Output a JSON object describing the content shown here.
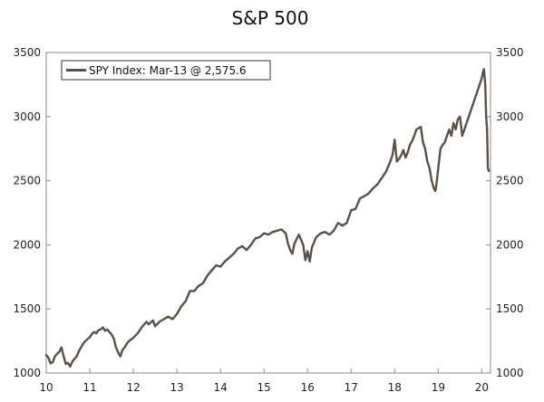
{
  "chart_data": {
    "type": "line",
    "title": "S&P 500",
    "xlabel": "",
    "ylabel": "",
    "xlim": [
      10,
      20.2
    ],
    "ylim": [
      1000,
      3500
    ],
    "x_ticks": [
      10,
      11,
      12,
      13,
      14,
      15,
      16,
      17,
      18,
      19,
      20
    ],
    "x_tick_labels": [
      "10",
      "11",
      "12",
      "13",
      "14",
      "15",
      "16",
      "17",
      "18",
      "19",
      "20"
    ],
    "y_ticks": [
      1000,
      1500,
      2000,
      2500,
      3000,
      3500
    ],
    "y_tick_labels": [
      "1000",
      "1500",
      "2000",
      "2500",
      "3000",
      "3500"
    ],
    "grid": false,
    "legend": {
      "position": "top-left",
      "label": "SPY Index: Mar-13 @ 2,575.6"
    },
    "series_color": "#5b5048",
    "series": [
      {
        "name": "SPY Index",
        "x": [
          10.0,
          10.05,
          10.1,
          10.15,
          10.2,
          10.25,
          10.3,
          10.35,
          10.4,
          10.45,
          10.5,
          10.55,
          10.6,
          10.65,
          10.7,
          10.75,
          10.8,
          10.85,
          10.9,
          10.95,
          11.0,
          11.05,
          11.1,
          11.15,
          11.2,
          11.25,
          11.3,
          11.35,
          11.4,
          11.45,
          11.5,
          11.55,
          11.6,
          11.65,
          11.7,
          11.75,
          11.8,
          11.85,
          11.9,
          12.0,
          12.1,
          12.2,
          12.3,
          12.35,
          12.45,
          12.5,
          12.6,
          12.7,
          12.8,
          12.9,
          13.0,
          13.1,
          13.2,
          13.3,
          13.4,
          13.5,
          13.6,
          13.7,
          13.8,
          13.9,
          14.0,
          14.1,
          14.2,
          14.3,
          14.4,
          14.5,
          14.6,
          14.7,
          14.8,
          14.9,
          15.0,
          15.1,
          15.2,
          15.3,
          15.4,
          15.5,
          15.55,
          15.6,
          15.65,
          15.7,
          15.8,
          15.9,
          15.95,
          16.0,
          16.05,
          16.1,
          16.2,
          16.3,
          16.4,
          16.5,
          16.6,
          16.7,
          16.8,
          16.9,
          17.0,
          17.1,
          17.2,
          17.3,
          17.4,
          17.5,
          17.6,
          17.7,
          17.8,
          17.9,
          17.95,
          18.0,
          18.05,
          18.1,
          18.15,
          18.2,
          18.25,
          18.3,
          18.35,
          18.4,
          18.45,
          18.5,
          18.6,
          18.65,
          18.7,
          18.75,
          18.8,
          18.85,
          18.9,
          18.93,
          18.95,
          19.0,
          19.05,
          19.1,
          19.15,
          19.2,
          19.25,
          19.3,
          19.35,
          19.4,
          19.45,
          19.5,
          19.55,
          19.6,
          19.65,
          19.7,
          19.75,
          19.8,
          19.85,
          19.9,
          19.95,
          20.0,
          20.03,
          20.05,
          20.08,
          20.1,
          20.12,
          20.14,
          20.16
        ],
        "values": [
          1140,
          1120,
          1075,
          1085,
          1130,
          1150,
          1165,
          1200,
          1130,
          1070,
          1080,
          1050,
          1090,
          1110,
          1130,
          1170,
          1200,
          1230,
          1250,
          1265,
          1280,
          1305,
          1320,
          1310,
          1335,
          1340,
          1355,
          1330,
          1340,
          1320,
          1300,
          1270,
          1200,
          1160,
          1130,
          1180,
          1200,
          1230,
          1250,
          1275,
          1310,
          1360,
          1400,
          1380,
          1410,
          1365,
          1400,
          1420,
          1440,
          1420,
          1460,
          1520,
          1560,
          1640,
          1640,
          1680,
          1700,
          1760,
          1800,
          1840,
          1830,
          1870,
          1900,
          1930,
          1970,
          1990,
          1960,
          2000,
          2050,
          2060,
          2090,
          2080,
          2100,
          2110,
          2120,
          2090,
          2010,
          1960,
          1930,
          2010,
          2080,
          2000,
          1880,
          1950,
          1870,
          1980,
          2060,
          2090,
          2100,
          2080,
          2110,
          2170,
          2150,
          2170,
          2270,
          2280,
          2360,
          2380,
          2400,
          2440,
          2470,
          2520,
          2570,
          2650,
          2700,
          2820,
          2650,
          2670,
          2700,
          2740,
          2680,
          2720,
          2780,
          2810,
          2850,
          2900,
          2920,
          2800,
          2750,
          2650,
          2600,
          2500,
          2440,
          2420,
          2450,
          2600,
          2750,
          2780,
          2800,
          2850,
          2900,
          2850,
          2950,
          2900,
          2980,
          3000,
          2850,
          2900,
          2950,
          3000,
          3050,
          3100,
          3150,
          3200,
          3250,
          3300,
          3350,
          3370,
          3250,
          3000,
          2900,
          2600,
          2576
        ]
      }
    ]
  }
}
